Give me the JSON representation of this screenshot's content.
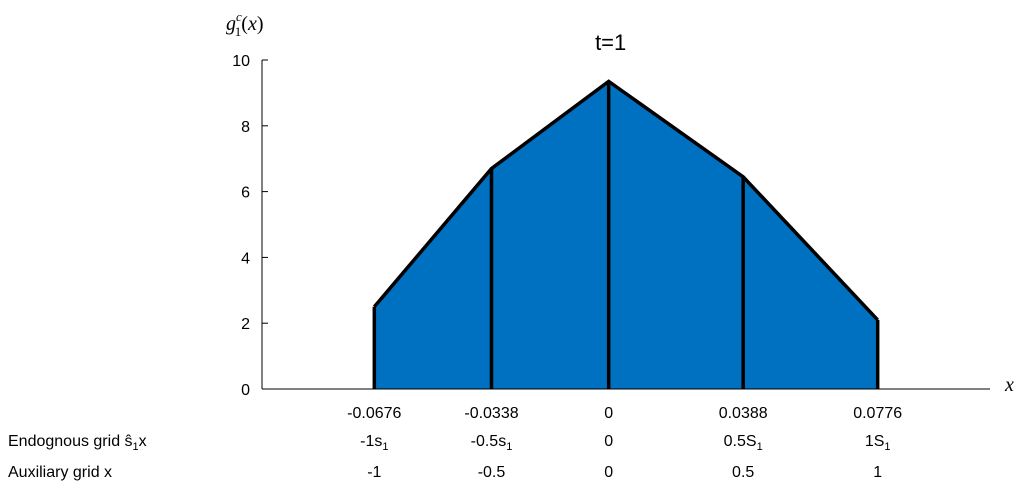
{
  "chart_data": {
    "type": "area",
    "title": "t=1",
    "ylabel": "g_1^c(x)",
    "xlabel": "x",
    "ylim": [
      0,
      10
    ],
    "yticks": [
      "0",
      "2",
      "4",
      "6",
      "8",
      "10"
    ],
    "fill_color": "#0070C0",
    "line_color": "#000000",
    "x_tick_labels": [
      "-0.0676",
      "-0.0338",
      "0",
      "0.0388",
      "0.0776"
    ],
    "points": [
      {
        "x": -0.0676,
        "y": 2.5
      },
      {
        "x": -0.0338,
        "y": 6.7
      },
      {
        "x": 0,
        "y": 9.35
      },
      {
        "x": 0.0388,
        "y": 6.45
      },
      {
        "x": 0.0776,
        "y": 2.1
      }
    ],
    "xlim": [
      -0.1,
      0.11
    ]
  },
  "rows": [
    {
      "label_text": "Endognous grid ŝ",
      "label_sub": "1",
      "label_tail": "x",
      "cells": [
        {
          "main": "-1s",
          "sub": "1"
        },
        {
          "main": "-0.5s",
          "sub": "1"
        },
        {
          "main": "0",
          "sub": ""
        },
        {
          "main": "0.5S",
          "sub": "1"
        },
        {
          "main": "1S",
          "sub": "1"
        }
      ]
    },
    {
      "label_text": "Auxiliary grid x",
      "label_sub": "",
      "label_tail": "",
      "cells": [
        {
          "main": "-1",
          "sub": ""
        },
        {
          "main": "-0.5",
          "sub": ""
        },
        {
          "main": "0",
          "sub": ""
        },
        {
          "main": "0.5",
          "sub": ""
        },
        {
          "main": "1",
          "sub": ""
        }
      ]
    }
  ]
}
